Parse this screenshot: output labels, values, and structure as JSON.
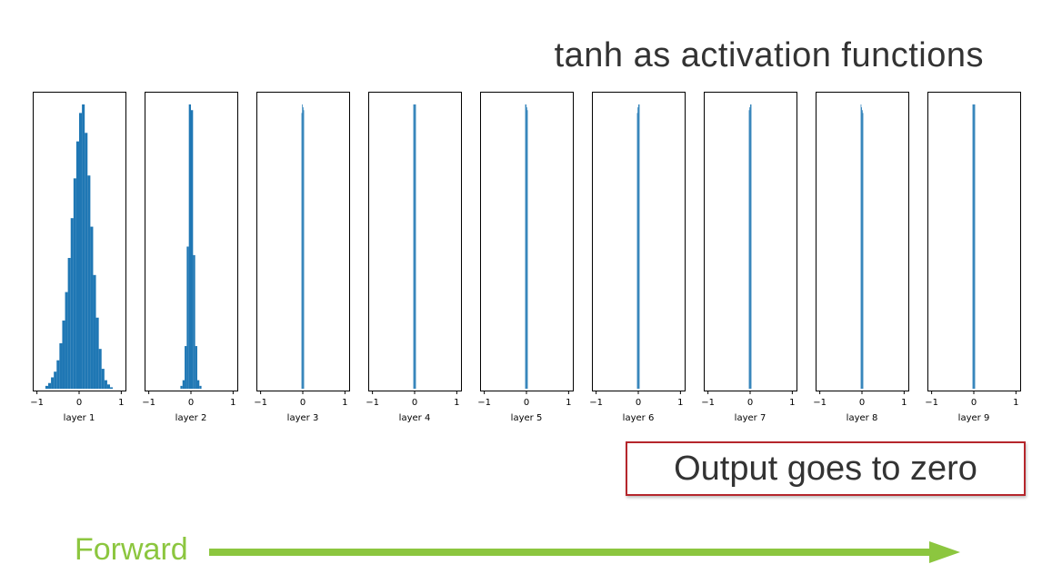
{
  "title": "tanh as activation functions",
  "callout": "Output goes to zero",
  "forward_label": "Forward",
  "colors": {
    "bar": "#1f77b4",
    "callout_border": "#b5262c",
    "forward": "#8cc63f"
  },
  "chart_data": [
    {
      "type": "bar",
      "xlabel": "layer 1",
      "xlim": [
        -1.1,
        1.1
      ],
      "xticks": [
        -1,
        0,
        1
      ],
      "bin_edges": [
        -0.8,
        -0.733,
        -0.667,
        -0.6,
        -0.533,
        -0.467,
        -0.4,
        -0.333,
        -0.267,
        -0.2,
        -0.133,
        -0.067,
        0.0,
        0.067,
        0.133,
        0.2,
        0.267,
        0.333,
        0.4,
        0.467,
        0.533,
        0.6,
        0.667,
        0.733,
        0.8
      ],
      "values": [
        0.01,
        0.02,
        0.04,
        0.06,
        0.1,
        0.16,
        0.24,
        0.34,
        0.46,
        0.6,
        0.74,
        0.87,
        0.97,
        1.0,
        0.9,
        0.75,
        0.57,
        0.4,
        0.25,
        0.14,
        0.07,
        0.03,
        0.015,
        0.005
      ]
    },
    {
      "type": "bar",
      "xlabel": "layer 2",
      "xlim": [
        -1.1,
        1.1
      ],
      "xticks": [
        -1,
        0,
        1
      ],
      "bin_edges": [
        -0.25,
        -0.2,
        -0.15,
        -0.1,
        -0.05,
        0.0,
        0.05,
        0.1,
        0.15,
        0.2,
        0.25
      ],
      "values": [
        0.01,
        0.03,
        0.15,
        0.5,
        1.0,
        0.98,
        0.47,
        0.15,
        0.03,
        0.01
      ]
    },
    {
      "type": "bar",
      "xlabel": "layer 3",
      "xlim": [
        -1.1,
        1.1
      ],
      "xticks": [
        -1,
        0,
        1
      ],
      "bin_edges": [
        -0.03,
        -0.015,
        0.0,
        0.015,
        0.03
      ],
      "values": [
        0.97,
        1.0,
        0.99,
        0.98
      ]
    },
    {
      "type": "bar",
      "xlabel": "layer 4",
      "xlim": [
        -1.1,
        1.1
      ],
      "xticks": [
        -1,
        0,
        1
      ],
      "bin_edges": [
        -0.03,
        -0.015,
        0.0,
        0.015,
        0.03
      ],
      "values": [
        1.0,
        1.0,
        1.0,
        1.0
      ]
    },
    {
      "type": "bar",
      "xlabel": "layer 5",
      "xlim": [
        -1.1,
        1.1
      ],
      "xticks": [
        -1,
        0,
        1
      ],
      "bin_edges": [
        -0.03,
        -0.015,
        0.0,
        0.015,
        0.03
      ],
      "values": [
        1.0,
        1.0,
        0.99,
        0.98
      ]
    },
    {
      "type": "bar",
      "xlabel": "layer 6",
      "xlim": [
        -1.1,
        1.1
      ],
      "xticks": [
        -1,
        0,
        1
      ],
      "bin_edges": [
        -0.03,
        -0.015,
        0.0,
        0.015,
        0.03
      ],
      "values": [
        0.97,
        0.99,
        1.0,
        1.0
      ]
    },
    {
      "type": "bar",
      "xlabel": "layer 7",
      "xlim": [
        -1.1,
        1.1
      ],
      "xticks": [
        -1,
        0,
        1
      ],
      "bin_edges": [
        -0.03,
        -0.015,
        0.0,
        0.015,
        0.03
      ],
      "values": [
        0.98,
        0.99,
        1.0,
        1.0
      ]
    },
    {
      "type": "bar",
      "xlabel": "layer 8",
      "xlim": [
        -1.1,
        1.1
      ],
      "xticks": [
        -1,
        0,
        1
      ],
      "bin_edges": [
        -0.03,
        -0.015,
        0.0,
        0.015,
        0.03
      ],
      "values": [
        1.0,
        0.99,
        0.98,
        0.97
      ]
    },
    {
      "type": "bar",
      "xlabel": "layer 9",
      "xlim": [
        -1.1,
        1.1
      ],
      "xticks": [
        -1,
        0,
        1
      ],
      "bin_edges": [
        -0.03,
        -0.015,
        0.0,
        0.015,
        0.03
      ],
      "values": [
        1.0,
        1.0,
        1.0,
        1.0
      ]
    }
  ]
}
